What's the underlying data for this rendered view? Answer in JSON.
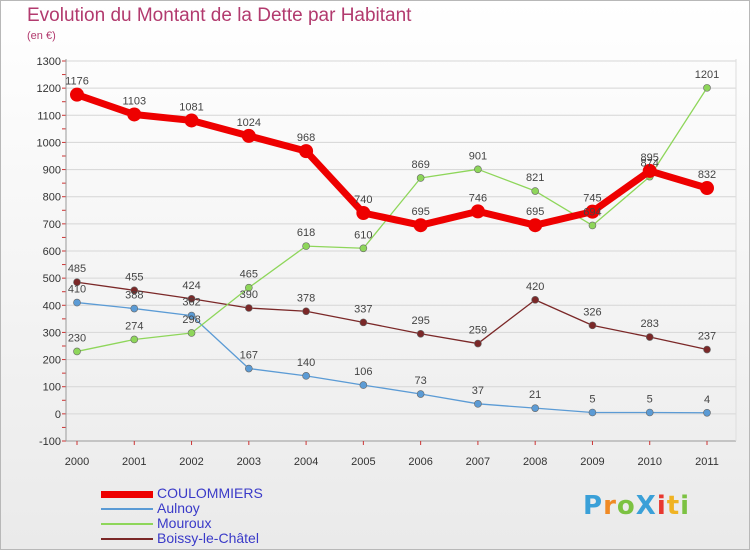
{
  "chart_data": {
    "type": "line",
    "title": "Evolution du Montant de la Dette par Habitant",
    "subtitle": "(en €)",
    "xlabel": "",
    "ylabel": "",
    "categories": [
      "2000",
      "2001",
      "2002",
      "2003",
      "2004",
      "2005",
      "2006",
      "2007",
      "2008",
      "2009",
      "2010",
      "2011"
    ],
    "ylim": [
      -100,
      1300
    ],
    "yticks": [
      -100,
      0,
      100,
      200,
      300,
      400,
      500,
      600,
      700,
      800,
      900,
      1000,
      1100,
      1200,
      1300
    ],
    "grid": "horizontal",
    "legend_position": "bottom-left",
    "series": [
      {
        "name": "COULOMMIERS",
        "color": "#ee0000",
        "values": [
          1176,
          1103,
          1081,
          1024,
          968,
          740,
          695,
          746,
          695,
          745,
          895,
          832
        ]
      },
      {
        "name": "Aulnoy",
        "color": "#5b9bd5",
        "values": [
          410,
          388,
          362,
          167,
          140,
          106,
          73,
          37,
          21,
          5,
          5,
          4
        ]
      },
      {
        "name": "Mouroux",
        "color": "#8ed65a",
        "values": [
          230,
          274,
          298,
          465,
          618,
          610,
          869,
          901,
          821,
          694,
          874,
          1201
        ]
      },
      {
        "name": "Boissy-le-Châtel",
        "color": "#7b2828",
        "values": [
          485,
          455,
          424,
          390,
          378,
          337,
          295,
          259,
          420,
          326,
          283,
          237
        ]
      }
    ]
  },
  "logo": {
    "text": "ProXiti",
    "colors": [
      "#3aa0d8",
      "#f08a24",
      "#7cc242",
      "#3aa0d8",
      "#e8382f",
      "#f0b323",
      "#7cc242"
    ]
  }
}
